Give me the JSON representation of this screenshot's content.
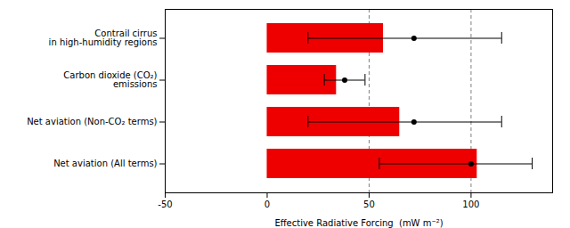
{
  "chart_data": {
    "type": "bar",
    "orientation": "horizontal",
    "categories": [
      "Contrail cirrus\nin high-humidity regions",
      "Carbon dioxide (CO₂)\nemissions",
      "Net aviation (Non-CO₂ terms)",
      "Net aviation (All terms)"
    ],
    "values": [
      57,
      34,
      65,
      103
    ],
    "best_estimates": [
      72,
      38,
      72,
      100
    ],
    "error_low": [
      20,
      28,
      20,
      55
    ],
    "error_high": [
      115,
      48,
      115,
      130
    ],
    "reference_lines": [
      50,
      100
    ],
    "color": "#ee0000",
    "xlabel": "Effective Radiative Forcing  (mW m⁻²)",
    "xlim": [
      -50,
      140
    ],
    "xticks": [
      -50,
      0,
      50,
      100
    ]
  }
}
